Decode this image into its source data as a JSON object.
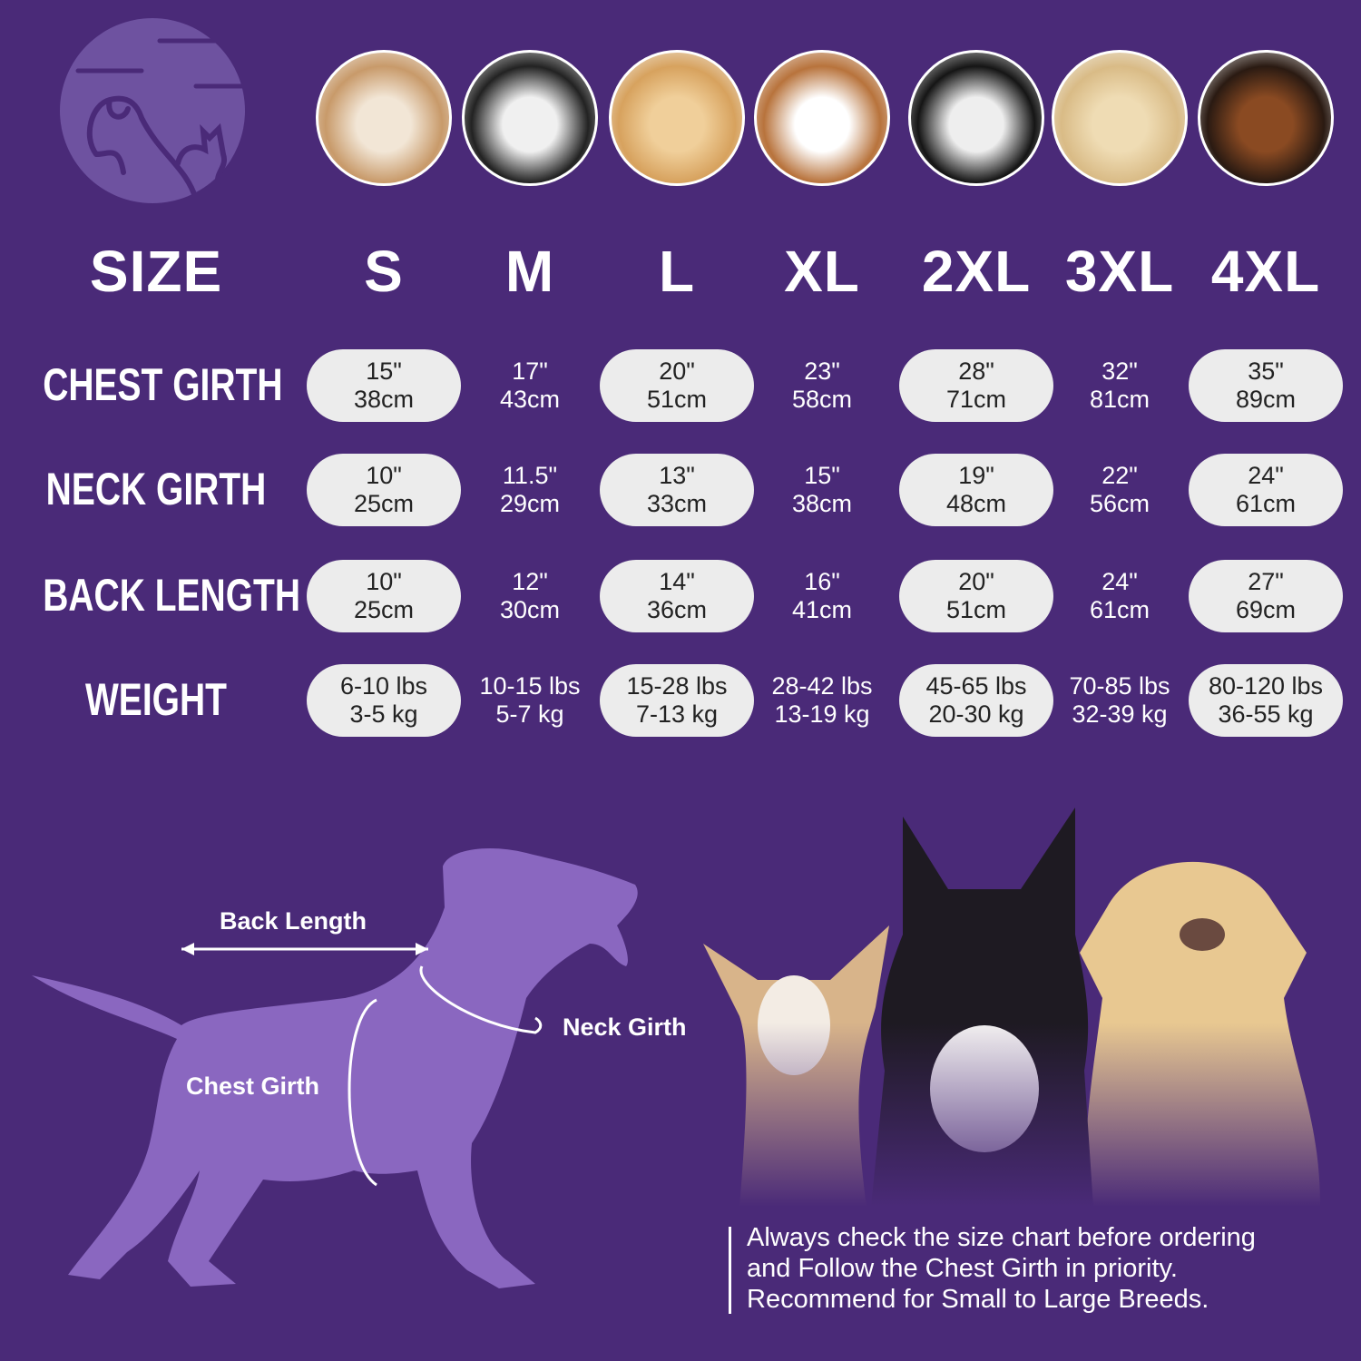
{
  "colors": {
    "background": "#4a2a78",
    "pill": "#ececec",
    "silhouette": "#8a67c0",
    "logo_circle": "#6e52a0"
  },
  "logo": {
    "icon": "dog-cat-logo-icon"
  },
  "breed_photos": [
    "shih-tzu",
    "boston-terrier",
    "cocker-spaniel",
    "beagle",
    "border-collie",
    "labrador",
    "doberman"
  ],
  "table": {
    "size_label": "SIZE",
    "sizes": [
      "S",
      "M",
      "L",
      "XL",
      "2XL",
      "3XL",
      "4XL"
    ],
    "rows": [
      {
        "label": "CHEST GIRTH",
        "values": [
          [
            "15\"",
            "38cm"
          ],
          [
            "17\"",
            "43cm"
          ],
          [
            "20\"",
            "51cm"
          ],
          [
            "23\"",
            "58cm"
          ],
          [
            "28\"",
            "71cm"
          ],
          [
            "32\"",
            "81cm"
          ],
          [
            "35\"",
            "89cm"
          ]
        ]
      },
      {
        "label": "NECK GIRTH",
        "values": [
          [
            "10\"",
            "25cm"
          ],
          [
            "11.5\"",
            "29cm"
          ],
          [
            "13\"",
            "33cm"
          ],
          [
            "15\"",
            "38cm"
          ],
          [
            "19\"",
            "48cm"
          ],
          [
            "22\"",
            "56cm"
          ],
          [
            "24\"",
            "61cm"
          ]
        ]
      },
      {
        "label": "BACK LENGTH",
        "values": [
          [
            "10\"",
            "25cm"
          ],
          [
            "12\"",
            "30cm"
          ],
          [
            "14\"",
            "36cm"
          ],
          [
            "16\"",
            "41cm"
          ],
          [
            "20\"",
            "51cm"
          ],
          [
            "24\"",
            "61cm"
          ],
          [
            "27\"",
            "69cm"
          ]
        ]
      },
      {
        "label": "WEIGHT",
        "values": [
          [
            "6-10 lbs",
            "3-5 kg"
          ],
          [
            "10-15 lbs",
            "5-7 kg"
          ],
          [
            "15-28 lbs",
            "7-13 kg"
          ],
          [
            "28-42 lbs",
            "13-19 kg"
          ],
          [
            "45-65 lbs",
            "20-30 kg"
          ],
          [
            "70-85 lbs",
            "32-39 kg"
          ],
          [
            "80-120 lbs",
            "36-55 kg"
          ]
        ]
      }
    ]
  },
  "diagram": {
    "back_length": "Back Length",
    "neck_girth": "Neck Girth",
    "chest_girth": "Chest Girth"
  },
  "note": {
    "lines": [
      "Always check the size chart before ordering",
      "and Follow the Chest Girth in priority.",
      "Recommend for Small to Large Breeds."
    ]
  }
}
